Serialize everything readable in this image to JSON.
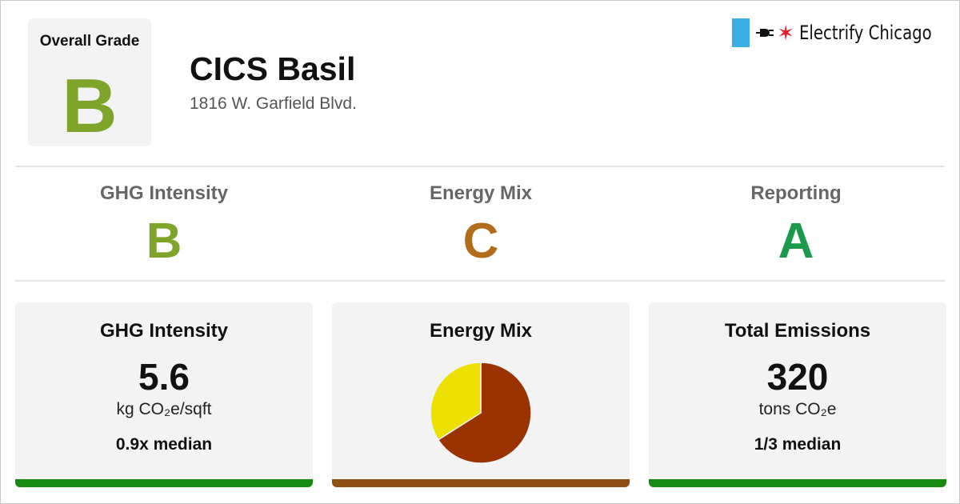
{
  "colors": {
    "grade_b": "#7ea52a",
    "grade_c": "#b36b1c",
    "grade_a": "#1a9a4a",
    "bar_green": "#178a12",
    "bar_brown": "#8d4f12",
    "brand_flag": "#3aaee4",
    "brand_star": "#e61d2b"
  },
  "header": {
    "overall_label": "Overall Grade",
    "overall_grade": "B",
    "building_name": "CICS Basil",
    "address": "1816 W. Garfield Blvd."
  },
  "brand": {
    "name": "Electrify Chicago",
    "icons": [
      "chicago-flag-stripe-icon",
      "plug-icon",
      "red-star-icon"
    ]
  },
  "subgrades": [
    {
      "label": "GHG Intensity",
      "grade": "B",
      "color": "#7ea52a"
    },
    {
      "label": "Energy Mix",
      "grade": "C",
      "color": "#b36b1c"
    },
    {
      "label": "Reporting",
      "grade": "A",
      "color": "#1a9a4a"
    }
  ],
  "cards": {
    "ghg": {
      "title": "GHG Intensity",
      "value": "5.6",
      "unit": "kg CO₂e/sqft",
      "median": "0.9x median",
      "bar_color": "#178a12"
    },
    "energy_mix": {
      "title": "Energy Mix",
      "bar_color": "#8d4f12"
    },
    "emissions": {
      "title": "Total Emissions",
      "value": "320",
      "unit": "tons CO₂e",
      "median": "1/3 median",
      "bar_color": "#178a12"
    }
  },
  "chart_data": {
    "type": "pie",
    "values": [
      66,
      34
    ],
    "colors": [
      "#9a3300",
      "#ece000"
    ]
  }
}
